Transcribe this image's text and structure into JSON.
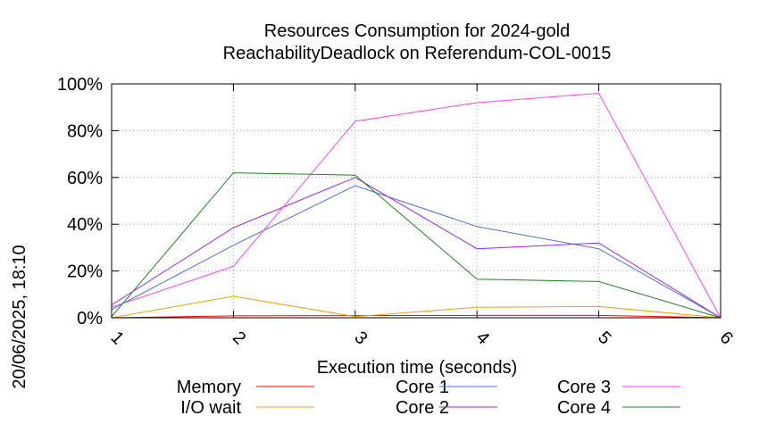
{
  "chart_data": {
    "type": "line",
    "title": [
      "Resources Consumption for 2024-gold",
      "ReachabilityDeadlock on Referendum-COL-0015"
    ],
    "xlabel": "Execution time (seconds)",
    "ylabel": "",
    "side_label": "20/06/2025, 18:10",
    "x": [
      1,
      2,
      3,
      4,
      5,
      6
    ],
    "x_ticks": [
      "1",
      "2",
      "3",
      "4",
      "5",
      "6"
    ],
    "y_ticks": [
      "0%",
      "20%",
      "40%",
      "60%",
      "80%",
      "100%"
    ],
    "xlim": [
      1,
      6
    ],
    "ylim": [
      0,
      100
    ],
    "grid": true,
    "legend_position": "bottom",
    "series": [
      {
        "name": "Memory",
        "color": "#ff0000",
        "values": [
          0,
          0.8,
          0.9,
          1.0,
          1.0,
          0
        ]
      },
      {
        "name": "I/O wait",
        "color": "#f0a000",
        "values": [
          0,
          9.2,
          0.5,
          4.5,
          4.8,
          0
        ]
      },
      {
        "name": "Core 1",
        "color": "#4a70d8",
        "values": [
          3.5,
          31,
          56.5,
          39,
          29.5,
          0
        ]
      },
      {
        "name": "Core 2",
        "color": "#a020f0",
        "values": [
          5.5,
          38.5,
          60,
          29.5,
          32,
          0
        ]
      },
      {
        "name": "Core 3",
        "color": "#ff40ff",
        "values": [
          4.5,
          22,
          84,
          92,
          96,
          0
        ]
      },
      {
        "name": "Core 4",
        "color": "#208020",
        "values": [
          0.5,
          62,
          61,
          16.5,
          15.5,
          0
        ]
      }
    ]
  }
}
